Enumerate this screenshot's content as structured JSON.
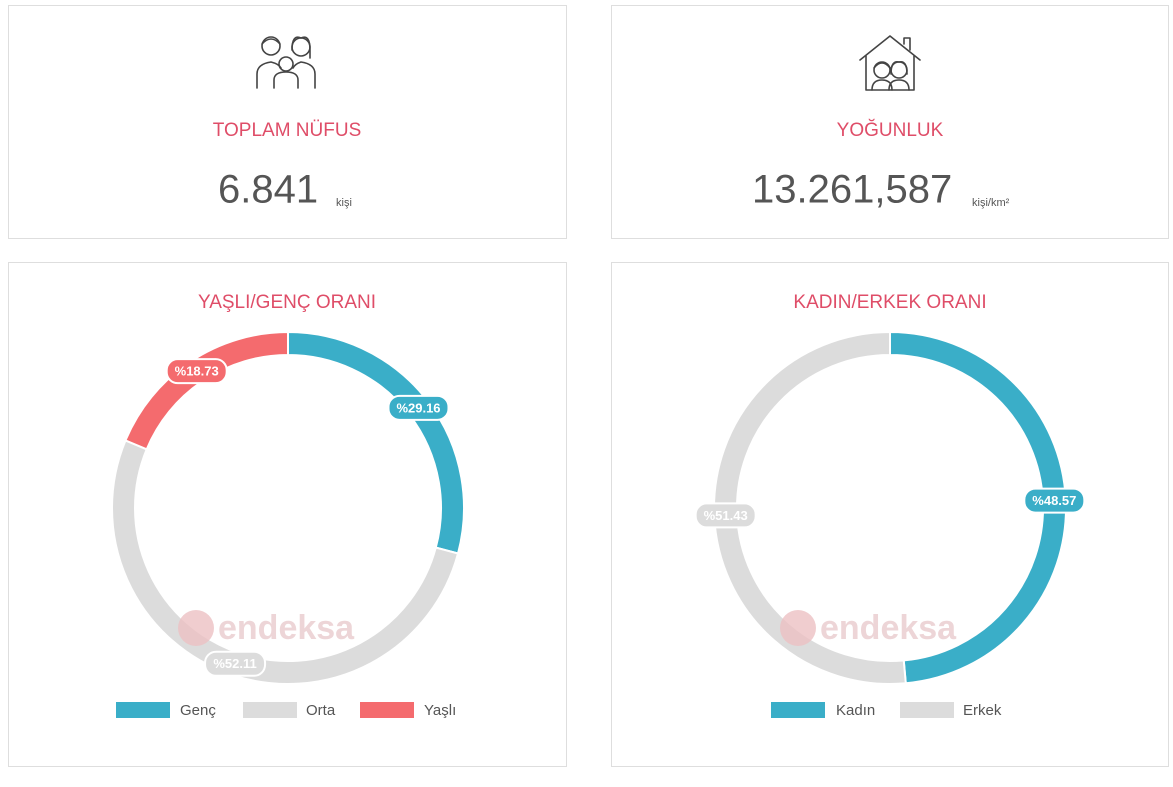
{
  "cards": [
    {
      "title": "TOPLAM NÜFUS",
      "value": "6.841",
      "unit": "kişi"
    },
    {
      "title": "YOĞUNLUK",
      "value": "13.261,587",
      "unit": "kişi/km²"
    }
  ],
  "watermark": "endeksa",
  "chart_data": [
    {
      "type": "pie",
      "title": "YAŞLI/GENÇ ORANI",
      "categories": [
        "Genç",
        "Orta",
        "Yaşlı"
      ],
      "values": [
        29.16,
        52.11,
        18.73
      ],
      "value_labels": [
        "%29.16",
        "%52.11",
        "%18.73"
      ],
      "colors": [
        "#3aaec8",
        "#dcdcdc",
        "#f46b6e"
      ]
    },
    {
      "type": "pie",
      "title": "KADIN/ERKEK ORANI",
      "categories": [
        "Kadın",
        "Erkek"
      ],
      "values": [
        48.57,
        51.43
      ],
      "value_labels": [
        "%48.57",
        "%51.43"
      ],
      "colors": [
        "#3aaec8",
        "#dcdcdc"
      ]
    }
  ]
}
